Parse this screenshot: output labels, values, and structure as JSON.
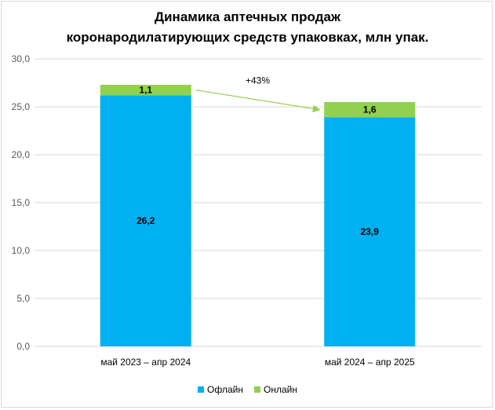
{
  "chart_data": {
    "type": "bar",
    "stacked": true,
    "title": "Динамика аптечных продаж",
    "subtitle": "коронародилатирующих средств упаковках, млн упак.",
    "categories": [
      "май 2023 – апр 2024",
      "май 2024 – апр 2025"
    ],
    "series": [
      {
        "name": "Офлайн",
        "values": [
          26.2,
          23.9
        ],
        "labels": [
          "26,2",
          "23,9"
        ],
        "color": "#00B0F0"
      },
      {
        "name": "Онлайн",
        "values": [
          1.1,
          1.6
        ],
        "labels": [
          "1,1",
          "1,6"
        ],
        "color": "#92D050"
      }
    ],
    "ylim": [
      0,
      30
    ],
    "yticks": [
      "0,0",
      "5,0",
      "10,0",
      "15,0",
      "20,0",
      "25,0",
      "30,0"
    ],
    "grid": true,
    "legend_position": "bottom",
    "annotation": {
      "text": "+43%",
      "color": "#92D050"
    }
  }
}
